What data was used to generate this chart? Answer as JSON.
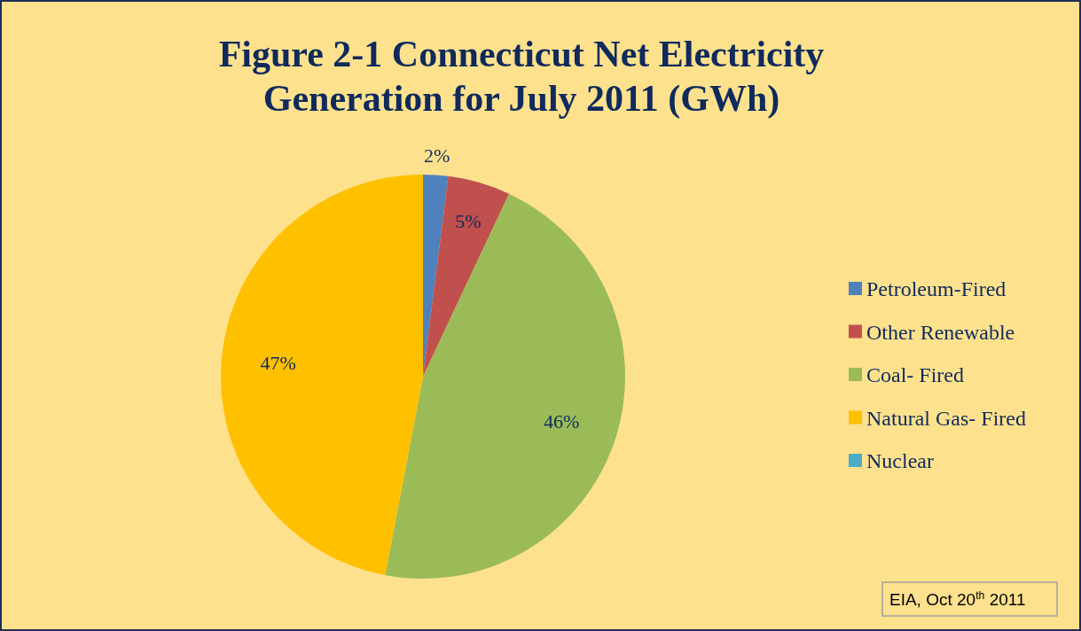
{
  "chart_data": {
    "type": "pie",
    "title": "Figure 2-1 Connecticut Net Electricity Generation for July 2011 (GWh)",
    "categories": [
      "Petroleum-Fired",
      "Other Renewable",
      "Coal- Fired",
      "Natural Gas- Fired",
      "Nuclear"
    ],
    "values": [
      2,
      5,
      46,
      47,
      0
    ],
    "colors": [
      "#4f81bd",
      "#c0504d",
      "#9bbb59",
      "#ffc000",
      "#4bacc6"
    ],
    "value_labels": [
      "2%",
      "5%",
      "46%",
      "47%",
      null
    ],
    "legend": "right",
    "annotations": [
      "EIA, Oct 20$^{th}$ 2011"
    ]
  }
}
